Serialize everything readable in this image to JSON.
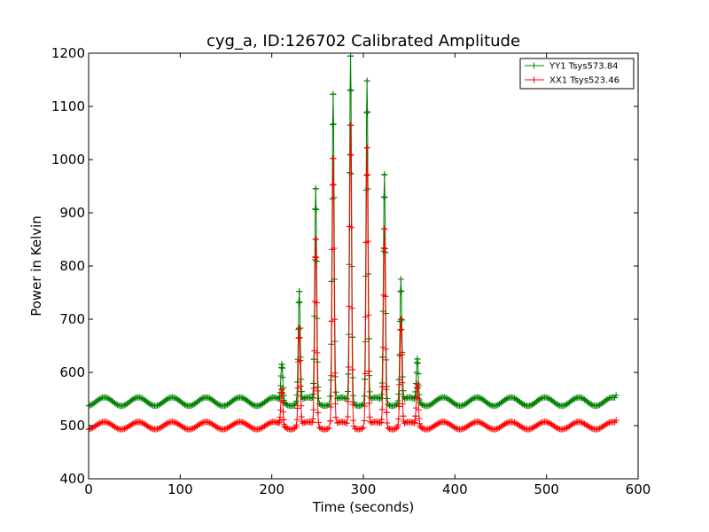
{
  "chart_data": {
    "type": "line",
    "title": "cyg_a, ID:126702 Calibrated Amplitude",
    "xlabel": "Time (seconds)",
    "ylabel": "Power in Kelvin",
    "xlim": [
      0,
      600
    ],
    "ylim": [
      400,
      1200
    ],
    "xticks": [
      0,
      100,
      200,
      300,
      400,
      500,
      600
    ],
    "yticks": [
      400,
      500,
      600,
      700,
      800,
      900,
      1000,
      1100,
      1200
    ],
    "grid": false,
    "legend_position": "top-right",
    "marker": "+",
    "series": [
      {
        "name": "YY1 Tsys573.84",
        "color": "#008000",
        "baseline": 545,
        "ripple_amplitude": 8,
        "ripple_period": 37,
        "x_start": 0,
        "x_end": 577,
        "end_value": 557,
        "sample_step": 1.5,
        "peaks": [
          {
            "x": 211,
            "y": 615
          },
          {
            "x": 230,
            "y": 752
          },
          {
            "x": 248,
            "y": 945
          },
          {
            "x": 267,
            "y": 1123
          },
          {
            "x": 286,
            "y": 1195
          },
          {
            "x": 304,
            "y": 1148
          },
          {
            "x": 323,
            "y": 972
          },
          {
            "x": 341,
            "y": 775
          },
          {
            "x": 359,
            "y": 625
          }
        ]
      },
      {
        "name": "XX1 Tsys523.46",
        "color": "#ff0000",
        "baseline": 500,
        "ripple_amplitude": 7,
        "ripple_period": 37,
        "x_start": 0,
        "x_end": 577,
        "end_value": 510,
        "sample_step": 1.5,
        "peaks": [
          {
            "x": 211,
            "y": 568
          },
          {
            "x": 230,
            "y": 683
          },
          {
            "x": 248,
            "y": 850
          },
          {
            "x": 267,
            "y": 1002
          },
          {
            "x": 286,
            "y": 1065
          },
          {
            "x": 304,
            "y": 1022
          },
          {
            "x": 323,
            "y": 870
          },
          {
            "x": 341,
            "y": 700
          },
          {
            "x": 359,
            "y": 578
          }
        ]
      }
    ]
  }
}
